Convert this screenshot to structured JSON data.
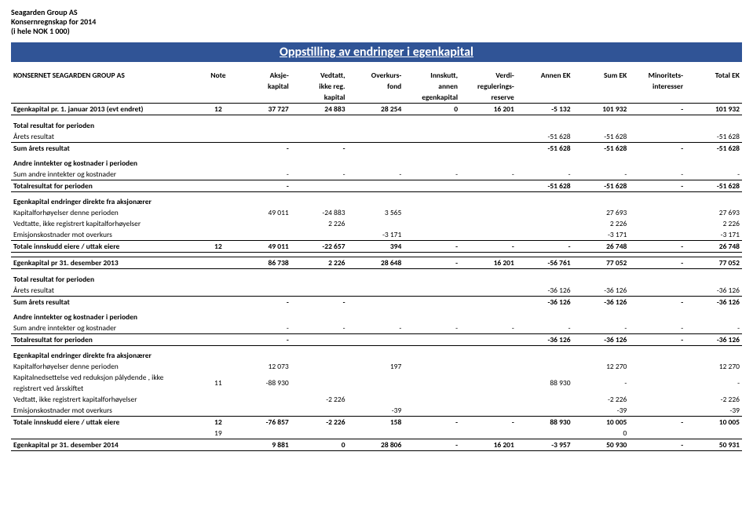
{
  "company": {
    "name": "Seagarden Group AS",
    "report_line": "Konsernregnskap for 2014",
    "unit_line": "(i hele NOK 1 000)"
  },
  "title": "Oppstilling av endringer i egenkapital",
  "entity_line": "KONSERNET SEAGARDEN GROUP AS",
  "columns": {
    "note": "Note",
    "c1a": "Aksje-",
    "c1b": "kapital",
    "c2a": "Vedtatt,",
    "c2b": "ikke reg.",
    "c2c": "kapital",
    "c3a": "Overkurs-",
    "c3b": "fond",
    "c4a": "Innskutt,",
    "c4b": "annen",
    "c4c": "egenkapital",
    "c5a": "Verdi-",
    "c5b": "regulerings-",
    "c5c": "reserve",
    "c6": "Annen EK",
    "c7": "Sum EK",
    "c8a": "Minoritets-",
    "c8b": "interesser",
    "c9": "Total EK"
  },
  "rows": {
    "ek1": {
      "label": "Egenkapital pr. 1. januar 2013 (evt endret)",
      "note": "12",
      "v": [
        "37 727",
        "24 883",
        "28 254",
        "0",
        "16 201",
        "-5 132",
        "101 932",
        "-",
        "101 932"
      ]
    },
    "trp1": "Total resultat for perioden",
    "ar1": {
      "label": "Årets resultat",
      "v": [
        "",
        "",
        "",
        "",
        "",
        "-51 628",
        "-51 628",
        "",
        "-51 628"
      ]
    },
    "sar1": {
      "label": "Sum årets resultat",
      "v": [
        "-",
        "-",
        "",
        "",
        "",
        "-51 628",
        "-51 628",
        "-",
        "-51 628"
      ]
    },
    "aikp1": "Andre inntekter og kostnader i perioden",
    "saik1": {
      "label": "Sum andre inntekter og kostnader",
      "v": [
        "-",
        "-",
        "-",
        "-",
        "-",
        "-",
        "-",
        "-",
        "-"
      ]
    },
    "tfp1": {
      "label": "Totalresultat for perioden",
      "v": [
        "-",
        "",
        "",
        "",
        "",
        "-51 628",
        "-51 628",
        "-",
        "-51 628"
      ]
    },
    "edfa1": "Egenkapital endringer direkte fra aksjonærer",
    "kdp1": {
      "label": "Kapitalforhøyelser denne perioden",
      "v": [
        "49 011",
        "-24 883",
        "3 565",
        "",
        "",
        "",
        "27 693",
        "",
        "27 693"
      ]
    },
    "virk1": {
      "label": "Vedtatte, ikke registrert kapitalforhøyelser",
      "v": [
        "",
        "2 226",
        "",
        "",
        "",
        "",
        "2 226",
        "",
        "2 226"
      ]
    },
    "emo1": {
      "label": "Emisjonskostnader mot overkurs",
      "v": [
        "",
        "",
        "-3 171",
        "",
        "",
        "",
        "-3 171",
        "",
        "-3 171"
      ]
    },
    "tie1": {
      "label": "Totale innskudd eiere / uttak eiere",
      "note": "12",
      "v": [
        "49 011",
        "-22 657",
        "394",
        "-",
        "-",
        "-",
        "26 748",
        "-",
        "26 748"
      ]
    },
    "ek2": {
      "label": "Egenkapital pr 31. desember 2013",
      "v": [
        "86 738",
        "2 226",
        "28 648",
        "-",
        "16 201",
        "-56 761",
        "77 052",
        "-",
        "77 052"
      ]
    },
    "trp2": "Total resultat for perioden",
    "ar2": {
      "label": "Årets resultat",
      "v": [
        "",
        "",
        "",
        "",
        "",
        "-36 126",
        "-36 126",
        "",
        "-36 126"
      ]
    },
    "sar2": {
      "label": "Sum årets resultat",
      "v": [
        "-",
        "-",
        "",
        "",
        "",
        "-36 126",
        "-36 126",
        "-",
        "-36 126"
      ]
    },
    "aikp2": "Andre inntekter og kostnader i perioden",
    "saik2": {
      "label": "Sum andre inntekter og kostnader",
      "v": [
        "-",
        "-",
        "-",
        "-",
        "-",
        "-",
        "-",
        "-",
        "-"
      ]
    },
    "tfp2": {
      "label": "Totalresultat for perioden",
      "v": [
        "-",
        "",
        "",
        "",
        "",
        "-36 126",
        "-36 126",
        "-",
        "-36 126"
      ]
    },
    "edfa2": "Egenkapital endringer direkte fra aksjonærer",
    "kdp2": {
      "label": "Kapitalforhøyelser denne perioden",
      "v": [
        "12 073",
        "",
        "197",
        "",
        "",
        "",
        "12 270",
        "",
        "12 270"
      ]
    },
    "knrp2a": "Kapitalnedsettelse ved reduksjon pålydende , ikke",
    "knrp2b": "registrert ved årsskiftet",
    "knrp2": {
      "note": "11",
      "v": [
        "-88 930",
        "",
        "",
        "",
        "",
        "88 930",
        "-",
        "",
        "-"
      ]
    },
    "virk2": {
      "label": "Vedtatt, ikke registrert kapitalforhøyelser",
      "v": [
        "",
        "-2 226",
        "",
        "",
        "",
        "",
        "-2 226",
        "",
        "-2 226"
      ]
    },
    "emo2": {
      "label": "Emisjonskostnader mot overkurs",
      "v": [
        "",
        "",
        "-39",
        "",
        "",
        "",
        "-39",
        "",
        "-39"
      ]
    },
    "tie2": {
      "label": "Totale innskudd eiere / uttak eiere",
      "note": "12",
      "v": [
        "-76 857",
        "-2 226",
        "158",
        "-",
        "-",
        "88 930",
        "10 005",
        "-",
        "10 005"
      ]
    },
    "extra19": {
      "note": "19",
      "val7": "0"
    },
    "ek3": {
      "label": "Egenkapital pr 31. desember 2014",
      "v": [
        "9 881",
        "0",
        "28 806",
        "-",
        "16 201",
        "-3 957",
        "50 930",
        "-",
        "50 931"
      ]
    }
  }
}
